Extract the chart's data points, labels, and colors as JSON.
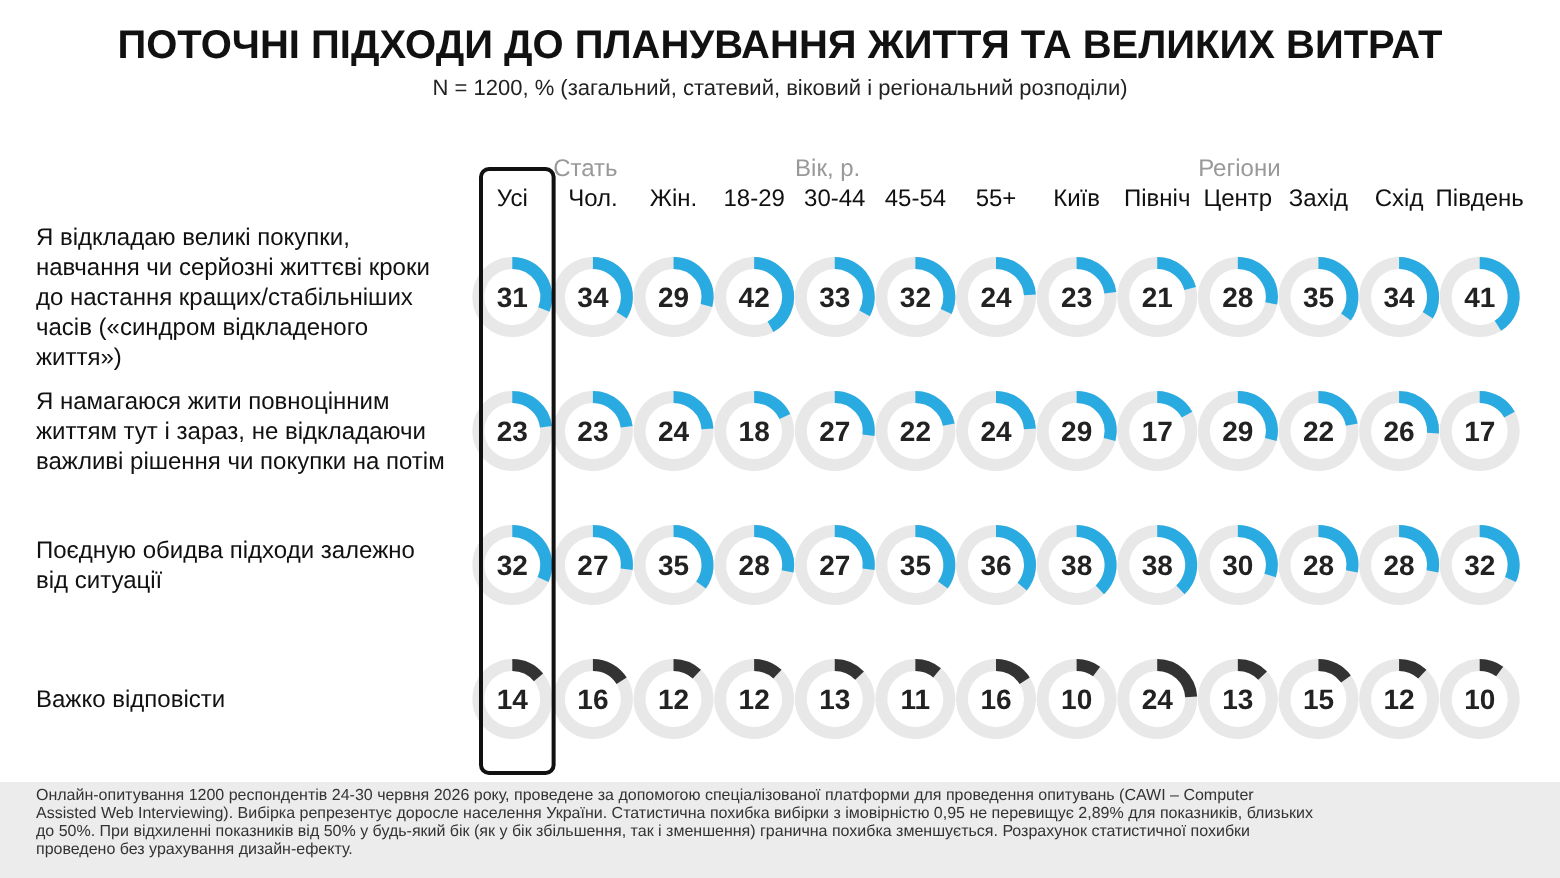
{
  "chart_data": {
    "type": "heatmap",
    "title": "ПОТОЧНІ ПІДХОДИ ДО ПЛАНУВАННЯ ЖИТТЯ ТА ВЕЛИКИХ ВИТРАТ",
    "subtitle": "N = 1200, % (загальний, статевий, віковий і регіональний розподіли)",
    "categories": [
      "Усі",
      "Чол.",
      "Жін.",
      "18-29",
      "30-44",
      "45-54",
      "55+",
      "Київ",
      "Північ",
      "Центр",
      "Захід",
      "Схід",
      "Південь"
    ],
    "y_categories": [
      "Я відкладаю великі покупки, навчання чи серйозні життєві кроки до настання кращих/стабільніших часів («синдром відкладеного життя»)",
      "Я намагаюся жити повноцінним життям тут і зараз, не відкладаючи важливі рішення чи покупки на потім",
      "Поєдную обидва підходи залежно від ситуації",
      "Важко відповісти"
    ],
    "cells": [
      [
        31,
        34,
        29,
        42,
        33,
        32,
        24,
        23,
        21,
        28,
        35,
        34,
        41
      ],
      [
        23,
        23,
        24,
        18,
        27,
        22,
        24,
        29,
        17,
        29,
        22,
        26,
        17
      ],
      [
        32,
        27,
        35,
        28,
        27,
        35,
        36,
        38,
        38,
        30,
        28,
        28,
        32
      ],
      [
        14,
        16,
        12,
        12,
        13,
        11,
        16,
        10,
        24,
        13,
        15,
        12,
        10
      ]
    ],
    "colors": [
      "#29abe2",
      "#29abe2",
      "#29abe2",
      "#333333"
    ],
    "data_labels": true,
    "annotations": [
      "Стать",
      "Вік, р.",
      "Регіони",
      "Онлайн-опитування 1200 респондентів 24-30 червня 2026 року, проведене за допомогою спеціалізованої платформи для проведення опитувань (CAWI – Computer Assisted Web Interviewing). Вибірка репрезентує доросле населення України. Статистична похибка вибірки з імовірністю 0,95 не перевищує 2,89% для показників, близьких до 50%. При відхиленні показників від 50% у будь-який бік (як у бік збільшення, так і зменшення) гранична похибка зменшується. Розрахунок статистичної похибки проведено без урахування дизайн-ефекту."
    ]
  }
}
